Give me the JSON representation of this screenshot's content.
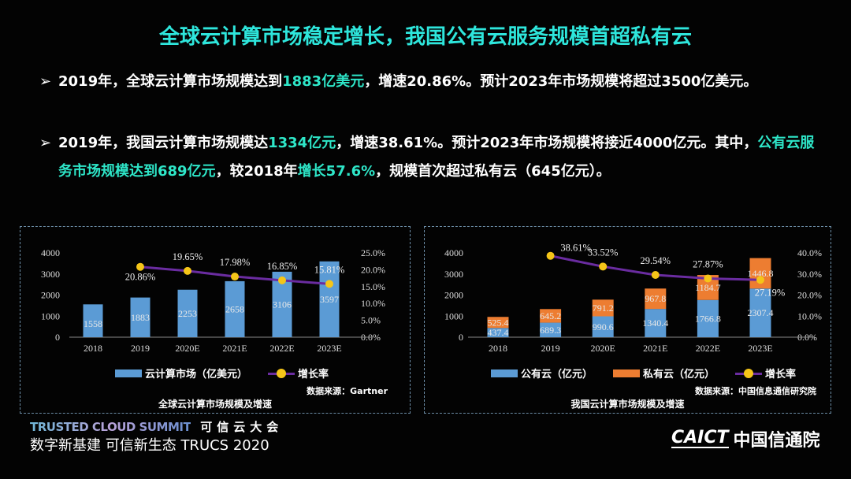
{
  "title": "全球云计算市场稳定增长，我国公有云服务规模首超私有云",
  "bullets": [
    {
      "parts": [
        {
          "t": "2019年，全球云计算市场规模达到",
          "hl": false
        },
        {
          "t": "1883亿美元",
          "hl": true
        },
        {
          "t": "，增速20.86%。预计2023年市场规模将超过3500亿美元。",
          "hl": false
        }
      ]
    },
    {
      "parts": [
        {
          "t": "2019年，我国云计算市场规模达",
          "hl": false
        },
        {
          "t": "1334亿元",
          "hl": true
        },
        {
          "t": "，增速38.61%。预计2023年市场规模将接近4000亿元。其中，",
          "hl": false
        },
        {
          "t": "公有云服务市场规模达到689亿元",
          "hl": true
        },
        {
          "t": "，较2018年",
          "hl": false
        },
        {
          "t": "增长57.6%",
          "hl": true
        },
        {
          "t": "，规模首次超过私有云（645亿元）。",
          "hl": false
        }
      ]
    }
  ],
  "bullet_arrow": "➢",
  "colors": {
    "bar_blue": "#5b9bd5",
    "bar_orange": "#ed7d31",
    "line": "#6a2ca0",
    "dot": "#f5c518",
    "accent": "#2ee6dc"
  },
  "chart_data": [
    {
      "type": "bar",
      "title": "全球云计算市场规模及增速",
      "source": "数据来源：Gartner",
      "categories": [
        "2018",
        "2019",
        "2020E",
        "2021E",
        "2022E",
        "2023E"
      ],
      "series": [
        {
          "name": "云计算市场（亿美元）",
          "values": [
            1558,
            1883,
            2253,
            2658,
            3106,
            3597
          ],
          "axis": "left"
        },
        {
          "name": "增长率",
          "type": "line",
          "values": [
            null,
            20.86,
            19.65,
            17.98,
            16.85,
            15.81
          ],
          "labels": [
            "",
            "20.86%",
            "19.65%",
            "17.98%",
            "16.85%",
            "15.81%"
          ],
          "axis": "right"
        }
      ],
      "ylim": [
        0,
        4000
      ],
      "yticks": [
        "0",
        "1000",
        "2000",
        "3000",
        "4000"
      ],
      "y2lim": [
        0,
        25
      ],
      "y2ticks": [
        "0.0%",
        "5.0%",
        "10.0%",
        "15.0%",
        "20.0%",
        "25.0%"
      ]
    },
    {
      "type": "bar",
      "stacked": true,
      "title": "我国云计算市场规模及增速",
      "source": "数据来源：中国信息通信研究院",
      "categories": [
        "2018",
        "2019",
        "2020E",
        "2021E",
        "2022E",
        "2023E"
      ],
      "series": [
        {
          "name": "公有云（亿元）",
          "values": [
            437.4,
            689.3,
            990.6,
            1340.4,
            1766.8,
            2307.4
          ],
          "axis": "left"
        },
        {
          "name": "私有云（亿元）",
          "values": [
            525.4,
            645.2,
            791.2,
            967.8,
            1184.7,
            1446.8
          ],
          "axis": "left"
        },
        {
          "name": "增长率",
          "type": "line",
          "values": [
            null,
            38.61,
            33.52,
            29.54,
            27.87,
            27.19
          ],
          "labels": [
            "",
            "38.61%",
            "33.52%",
            "29.54%",
            "27.87%",
            "27.19%"
          ],
          "axis": "right"
        }
      ],
      "ylim": [
        0,
        4000
      ],
      "yticks": [
        "0",
        "1000",
        "2000",
        "3000",
        "4000"
      ],
      "y2lim": [
        0,
        40
      ],
      "y2ticks": [
        "0.0%",
        "10.0%",
        "20.0%",
        "30.0%",
        "40.0%"
      ]
    }
  ],
  "footer": {
    "en": "TRUSTED CLOUD SUMMIT",
    "cn": "可信云大会",
    "slogan": "数字新基建 可信新生态  TRUCS 2020"
  },
  "logo": {
    "en": "CAICT",
    "cn": "中国信通院"
  }
}
